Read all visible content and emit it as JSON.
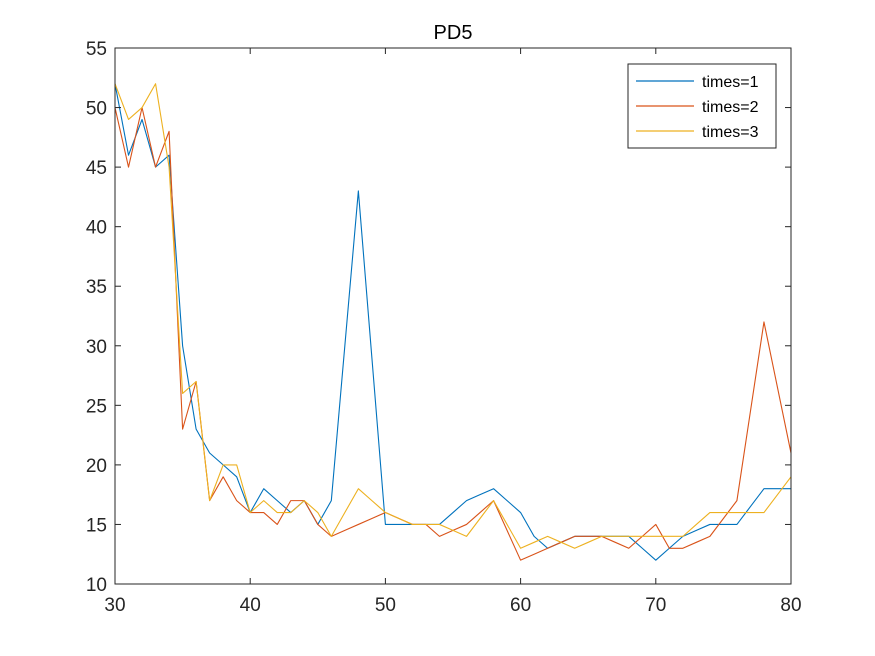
{
  "chart_data": {
    "type": "line",
    "title": "PD5",
    "xlabel": "",
    "ylabel": "",
    "xlim": [
      30,
      80
    ],
    "ylim": [
      10,
      55
    ],
    "xticks": [
      30,
      40,
      50,
      60,
      70,
      80
    ],
    "yticks": [
      10,
      15,
      20,
      25,
      30,
      35,
      40,
      45,
      50,
      55
    ],
    "grid": false,
    "legend_position": "top-right",
    "x": [
      30,
      31,
      32,
      33,
      34,
      35,
      36,
      37,
      38,
      39,
      40,
      41,
      42,
      43,
      44,
      45,
      46,
      47,
      48,
      49,
      50,
      51,
      52,
      53,
      54,
      55,
      56,
      57,
      58,
      59,
      60,
      61,
      62,
      63,
      64,
      65,
      66,
      67,
      68,
      69,
      70,
      71,
      72,
      73,
      74,
      75,
      76,
      77,
      78,
      79,
      80
    ],
    "series": [
      {
        "name": "times=1",
        "color": "#0072BD",
        "values": [
          52,
          46,
          49,
          45,
          46,
          30,
          23,
          21,
          20,
          19,
          16,
          18,
          17,
          16,
          17,
          15,
          17,
          30,
          43,
          29,
          15,
          15,
          15,
          15,
          15,
          16,
          17,
          17.5,
          18,
          17,
          16,
          14,
          13,
          13.5,
          14,
          14,
          14,
          14,
          14,
          13,
          12,
          13,
          14,
          14.5,
          15,
          15,
          15,
          16.5,
          18,
          18,
          18
        ]
      },
      {
        "name": "times=2",
        "color": "#D95319",
        "values": [
          50,
          45,
          50,
          45,
          48,
          23,
          27,
          17,
          19,
          17,
          16,
          16,
          15,
          17,
          17,
          15,
          14,
          14.5,
          15,
          15.5,
          16,
          15.5,
          15,
          15,
          14,
          14.5,
          15,
          16,
          17,
          14.5,
          12,
          12.5,
          13,
          13.5,
          14,
          14,
          14,
          13.5,
          13,
          14,
          15,
          13,
          13,
          13.5,
          14,
          15.5,
          17,
          24.5,
          32,
          26.5,
          21
        ]
      },
      {
        "name": "times=3",
        "color": "#EDB120",
        "values": [
          52,
          49,
          50,
          52,
          45,
          26,
          27,
          17,
          20,
          20,
          16,
          17,
          16,
          16,
          17,
          16,
          14,
          16,
          18,
          17,
          16,
          15.5,
          15,
          15,
          15,
          14.5,
          14,
          15.5,
          17,
          15,
          13,
          13.5,
          14,
          13.5,
          13,
          13.5,
          14,
          14,
          14,
          14,
          14,
          14,
          14,
          15,
          16,
          16,
          16,
          16,
          16,
          17.5,
          19
        ]
      }
    ]
  }
}
